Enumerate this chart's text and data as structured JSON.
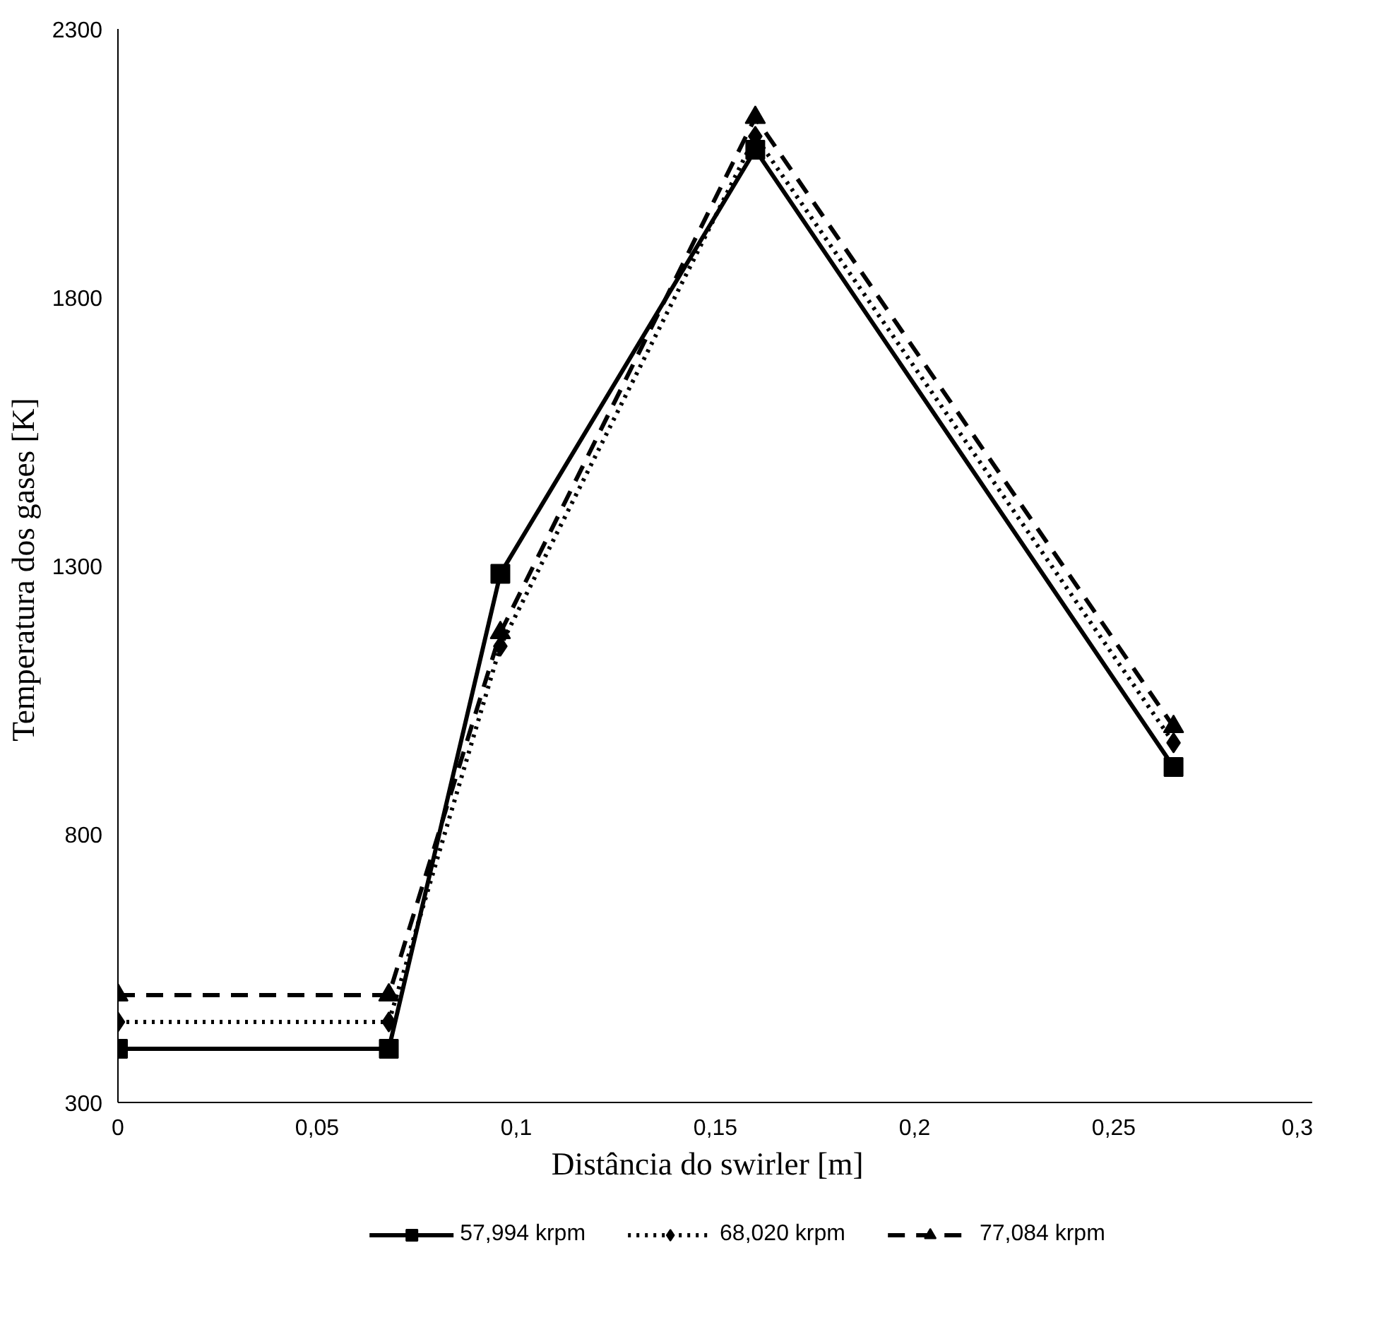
{
  "chart_data": {
    "type": "line",
    "xlabel": "Distância  do swirler  [m]",
    "ylabel": "Temperatura  dos gases [K]",
    "xlim": [
      0,
      0.3
    ],
    "xticks": [
      0,
      {
        "value": 0.05,
        "label": "0,05"
      },
      {
        "value": 0.1,
        "label": "0,1"
      },
      {
        "value": 0.15,
        "label": "0,15"
      },
      {
        "value": 0.2,
        "label": "0,2"
      },
      {
        "value": 0.25,
        "label": "0,25"
      },
      {
        "value": 0.3,
        "label": "0,3"
      }
    ],
    "ylim": [
      300,
      2300
    ],
    "yticks": [
      300,
      800,
      1300,
      1800,
      2300
    ],
    "grid": false,
    "legend": "bottom",
    "series": [
      {
        "name": "57,994 krpm",
        "color": "#000000",
        "marker": "square",
        "line_style": "solid",
        "x": [
          0,
          0.068,
          0.096,
          0.16,
          0.265
        ],
        "values": [
          400,
          400,
          1285,
          2075,
          925
        ]
      },
      {
        "name": "68,020 krpm",
        "color": "#000000",
        "marker": "diamond",
        "line_style": "dotted",
        "x": [
          0,
          0.068,
          0.096,
          0.16,
          0.265
        ],
        "values": [
          450,
          450,
          1150,
          2100,
          970
        ]
      },
      {
        "name": "77,084 krpm",
        "color": "#000000",
        "marker": "triangle",
        "line_style": "dashed",
        "x": [
          0,
          0.068,
          0.096,
          0.16,
          0.265
        ],
        "values": [
          500,
          500,
          1175,
          2135,
          1000
        ]
      }
    ]
  }
}
